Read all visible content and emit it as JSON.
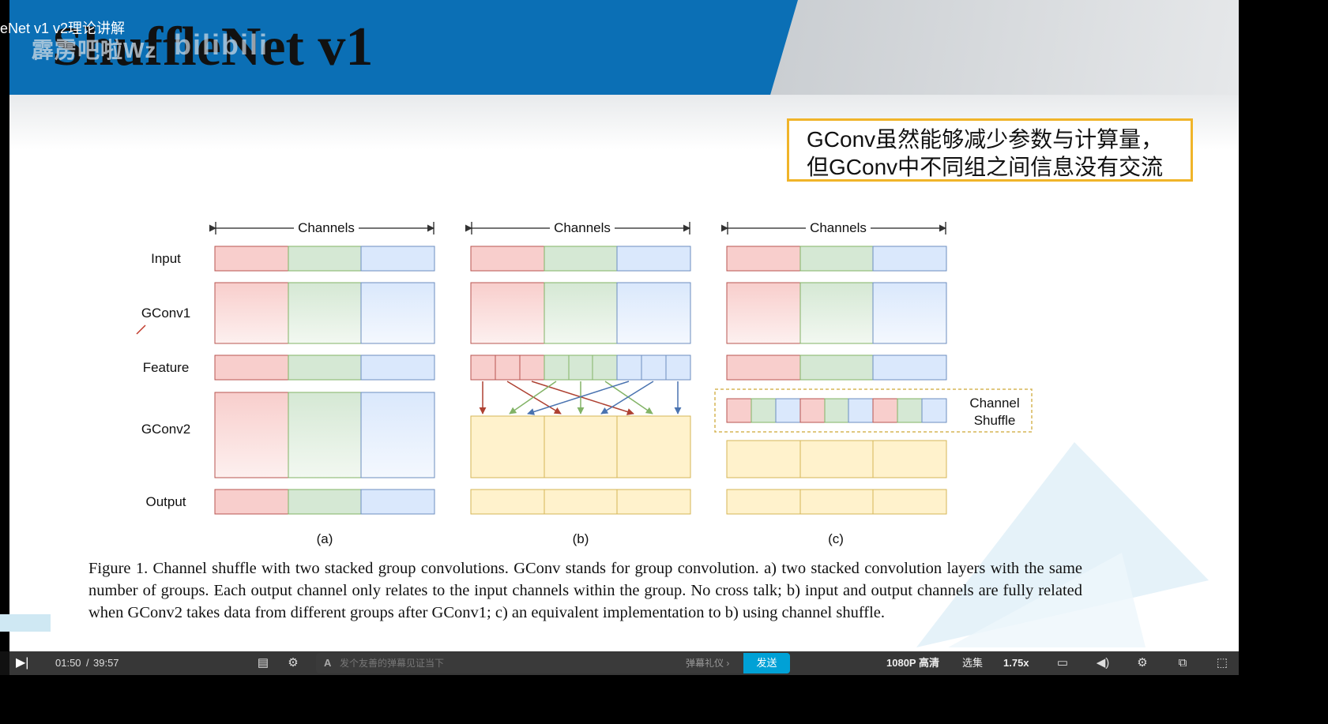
{
  "watermark": {
    "video_title": "eNet v1 v2理论讲解",
    "uploader": "霹雳吧啦Wz",
    "logo": "bilibili"
  },
  "slide": {
    "title": "ShuffleNet v1",
    "note_line1": "GConv虽然能够减少参数与计算量，",
    "note_line2": "但GConv中不同组之间信息没有交流"
  },
  "figure": {
    "channels_label": "Channels",
    "row_labels": [
      "Input",
      "GConv1",
      "Feature",
      "GConv2",
      "Output"
    ],
    "panel_labels": [
      "(a)",
      "(b)",
      "(c)"
    ],
    "shuffle_label_1": "Channel",
    "shuffle_label_2": "Shuffle",
    "caption": "Figure 1. Channel shuffle with two stacked group convolutions. GConv stands for group convolution. a) two stacked convolution layers with the same number of groups. Each output channel only relates to the input channels within the group. No cross talk; b) input and output channels are fully related when GConv2 takes data from different groups after GConv1; c) an equivalent implementation to b) using channel shuffle.",
    "colors": {
      "red_fill": "#f8cecc",
      "red_stroke": "#b85450",
      "green_fill": "#d5e8d4",
      "green_stroke": "#82b366",
      "blue_fill": "#dae8fc",
      "blue_stroke": "#6c8ebf",
      "yellow_fill": "#fff2cc",
      "yellow_stroke": "#d6b656"
    }
  },
  "player": {
    "time_current": "01:50",
    "time_separator": "/",
    "time_total": "39:57",
    "danmaku_placeholder": "发个友善的弹幕见证当下",
    "danmaku_etiquette": "弹幕礼仪 ›",
    "send_label": "发送",
    "quality_label": "1080P 高清",
    "episodes_label": "选集",
    "speed_label": "1.75x",
    "icons": [
      "play-icon",
      "danmaku-toggle-icon",
      "danmaku-settings-icon",
      "subtitle-icon",
      "volume-icon",
      "settings-icon",
      "picture-in-picture-icon",
      "widescreen-icon"
    ]
  }
}
